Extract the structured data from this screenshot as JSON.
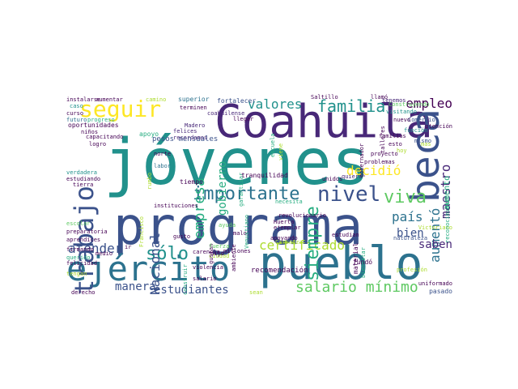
{
  "palette": {
    "navy": "#3b528b",
    "purple": "#482878",
    "darkpurple": "#440154",
    "teal": "#21918c",
    "cyan": "#2c728e",
    "green": "#27ad81",
    "lightgreen": "#5ec962",
    "lime": "#addc30",
    "yellow": "#fde725"
  },
  "words": [
    "jóvenes",
    "programa",
    "Coahuila",
    "pueblo",
    "ejército",
    "beca",
    "trabajo",
    "seguir",
    "importante",
    "nivel",
    "viva",
    "familia",
    "valores",
    "empleo",
    "salario mínimo",
    "empresa",
    "sólo",
    "atender",
    "certificado",
    "país",
    "decidió",
    "aumentó",
    "bien",
    "saben",
    "estudiantes",
    "manera",
    "siempre",
    "gobierno",
    "Nacional",
    "maestro",
    "recomendación",
    "aumento",
    "pesos mensuales",
    "oportunidades",
    "superior",
    "fortalecer",
    "Saltillo",
    "llamó",
    "instalarse",
    "aumentar",
    "camino",
    "caso",
    "curso",
    "futuro",
    "progreso",
    "niños",
    "coahuilense",
    "felices",
    "recordamos",
    "Madero",
    "terminen",
    "llegar",
    "tenemos",
    "visitando",
    "Comercio",
    "nuevo",
    "Construyendo",
    "mismo",
    "atención",
    "capacitando",
    "apoyo",
    "norte",
    "labor",
    "verdadera",
    "estudiando",
    "tierra",
    "tiempo",
    "garantizar",
    "tranquilidad",
    "quiero",
    "gobernador",
    "aprendices",
    "escolar",
    "preparatoria",
    "firmando",
    "querido",
    "felicidad",
    "instituciones",
    "ciudad",
    "revolucionario",
    "ejemplar",
    "estudian",
    "material",
    "bienestar",
    "necesita",
    "fundó",
    "naturaleza",
    "Victoriano",
    "Huerta",
    "gusto",
    "gustan",
    "fuerza",
    "malo",
    "millones",
    "dijo",
    "violencia",
    "salario",
    "derecho",
    "medio",
    "tengan",
    "sean",
    "pasado",
    "uniformado",
    "problemas",
    "proyecto",
    "construir",
    "escuela",
    "viene",
    "esto",
    "rumbo",
    "Francisco",
    "Venustiano",
    "apoyando",
    "ambiente",
    "carencia",
    "función",
    "hoy",
    "reconocimiento",
    "familias",
    "talleres",
    "logro",
    "Carranza",
    "unidos",
    "profesión",
    "ir",
    "mas",
    "ayuda"
  ]
}
